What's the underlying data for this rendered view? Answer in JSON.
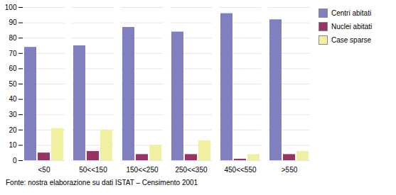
{
  "chart_data": {
    "type": "bar",
    "categories": [
      "<50",
      "50<<150",
      "150<<250",
      "250<<350",
      "450<<550",
      ">550"
    ],
    "series": [
      {
        "name": "Centri abitati",
        "color": "#8080C0",
        "values": [
          74,
          75,
          87,
          84,
          96,
          92
        ]
      },
      {
        "name": "Nuclei abitati",
        "color": "#993366",
        "values": [
          5,
          6,
          4,
          4,
          1,
          4
        ]
      },
      {
        "name": "Case sparse",
        "color": "#F0F0A0",
        "values": [
          21,
          20,
          10,
          13,
          4,
          6
        ]
      }
    ],
    "ylim": [
      0,
      100
    ],
    "yticks": [
      0,
      10,
      20,
      30,
      40,
      50,
      60,
      70,
      80,
      90,
      100
    ],
    "grid": true,
    "legend": "right",
    "caption": "Fonte: nostra elaborazione su dati ISTAT – Censimento 2001"
  }
}
